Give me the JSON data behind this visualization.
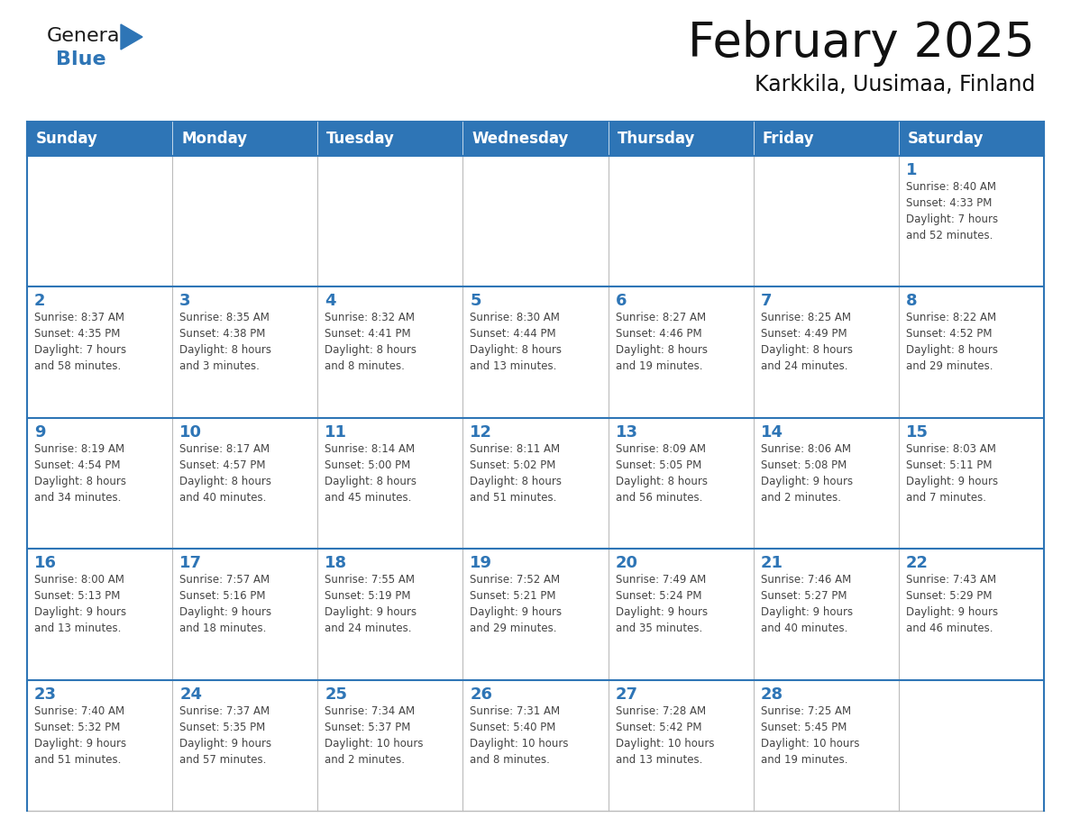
{
  "title": "February 2025",
  "subtitle": "Karkkila, Uusimaa, Finland",
  "header_color": "#2E75B6",
  "header_text_color": "#FFFFFF",
  "day_number_color": "#2E75B6",
  "text_color": "#444444",
  "border_color_blue": "#2E75B6",
  "border_color_light": "#BBBBBB",
  "days_of_week": [
    "Sunday",
    "Monday",
    "Tuesday",
    "Wednesday",
    "Thursday",
    "Friday",
    "Saturday"
  ],
  "weeks": [
    [
      {
        "day": null,
        "info": null
      },
      {
        "day": null,
        "info": null
      },
      {
        "day": null,
        "info": null
      },
      {
        "day": null,
        "info": null
      },
      {
        "day": null,
        "info": null
      },
      {
        "day": null,
        "info": null
      },
      {
        "day": "1",
        "info": "Sunrise: 8:40 AM\nSunset: 4:33 PM\nDaylight: 7 hours\nand 52 minutes."
      }
    ],
    [
      {
        "day": "2",
        "info": "Sunrise: 8:37 AM\nSunset: 4:35 PM\nDaylight: 7 hours\nand 58 minutes."
      },
      {
        "day": "3",
        "info": "Sunrise: 8:35 AM\nSunset: 4:38 PM\nDaylight: 8 hours\nand 3 minutes."
      },
      {
        "day": "4",
        "info": "Sunrise: 8:32 AM\nSunset: 4:41 PM\nDaylight: 8 hours\nand 8 minutes."
      },
      {
        "day": "5",
        "info": "Sunrise: 8:30 AM\nSunset: 4:44 PM\nDaylight: 8 hours\nand 13 minutes."
      },
      {
        "day": "6",
        "info": "Sunrise: 8:27 AM\nSunset: 4:46 PM\nDaylight: 8 hours\nand 19 minutes."
      },
      {
        "day": "7",
        "info": "Sunrise: 8:25 AM\nSunset: 4:49 PM\nDaylight: 8 hours\nand 24 minutes."
      },
      {
        "day": "8",
        "info": "Sunrise: 8:22 AM\nSunset: 4:52 PM\nDaylight: 8 hours\nand 29 minutes."
      }
    ],
    [
      {
        "day": "9",
        "info": "Sunrise: 8:19 AM\nSunset: 4:54 PM\nDaylight: 8 hours\nand 34 minutes."
      },
      {
        "day": "10",
        "info": "Sunrise: 8:17 AM\nSunset: 4:57 PM\nDaylight: 8 hours\nand 40 minutes."
      },
      {
        "day": "11",
        "info": "Sunrise: 8:14 AM\nSunset: 5:00 PM\nDaylight: 8 hours\nand 45 minutes."
      },
      {
        "day": "12",
        "info": "Sunrise: 8:11 AM\nSunset: 5:02 PM\nDaylight: 8 hours\nand 51 minutes."
      },
      {
        "day": "13",
        "info": "Sunrise: 8:09 AM\nSunset: 5:05 PM\nDaylight: 8 hours\nand 56 minutes."
      },
      {
        "day": "14",
        "info": "Sunrise: 8:06 AM\nSunset: 5:08 PM\nDaylight: 9 hours\nand 2 minutes."
      },
      {
        "day": "15",
        "info": "Sunrise: 8:03 AM\nSunset: 5:11 PM\nDaylight: 9 hours\nand 7 minutes."
      }
    ],
    [
      {
        "day": "16",
        "info": "Sunrise: 8:00 AM\nSunset: 5:13 PM\nDaylight: 9 hours\nand 13 minutes."
      },
      {
        "day": "17",
        "info": "Sunrise: 7:57 AM\nSunset: 5:16 PM\nDaylight: 9 hours\nand 18 minutes."
      },
      {
        "day": "18",
        "info": "Sunrise: 7:55 AM\nSunset: 5:19 PM\nDaylight: 9 hours\nand 24 minutes."
      },
      {
        "day": "19",
        "info": "Sunrise: 7:52 AM\nSunset: 5:21 PM\nDaylight: 9 hours\nand 29 minutes."
      },
      {
        "day": "20",
        "info": "Sunrise: 7:49 AM\nSunset: 5:24 PM\nDaylight: 9 hours\nand 35 minutes."
      },
      {
        "day": "21",
        "info": "Sunrise: 7:46 AM\nSunset: 5:27 PM\nDaylight: 9 hours\nand 40 minutes."
      },
      {
        "day": "22",
        "info": "Sunrise: 7:43 AM\nSunset: 5:29 PM\nDaylight: 9 hours\nand 46 minutes."
      }
    ],
    [
      {
        "day": "23",
        "info": "Sunrise: 7:40 AM\nSunset: 5:32 PM\nDaylight: 9 hours\nand 51 minutes."
      },
      {
        "day": "24",
        "info": "Sunrise: 7:37 AM\nSunset: 5:35 PM\nDaylight: 9 hours\nand 57 minutes."
      },
      {
        "day": "25",
        "info": "Sunrise: 7:34 AM\nSunset: 5:37 PM\nDaylight: 10 hours\nand 2 minutes."
      },
      {
        "day": "26",
        "info": "Sunrise: 7:31 AM\nSunset: 5:40 PM\nDaylight: 10 hours\nand 8 minutes."
      },
      {
        "day": "27",
        "info": "Sunrise: 7:28 AM\nSunset: 5:42 PM\nDaylight: 10 hours\nand 13 minutes."
      },
      {
        "day": "28",
        "info": "Sunrise: 7:25 AM\nSunset: 5:45 PM\nDaylight: 10 hours\nand 19 minutes."
      },
      {
        "day": null,
        "info": null
      }
    ]
  ],
  "logo_general_color": "#1a1a1a",
  "logo_blue_color": "#2E75B6",
  "title_fontsize": 38,
  "subtitle_fontsize": 17,
  "header_fontsize": 12,
  "day_num_fontsize": 13,
  "info_fontsize": 8.5
}
